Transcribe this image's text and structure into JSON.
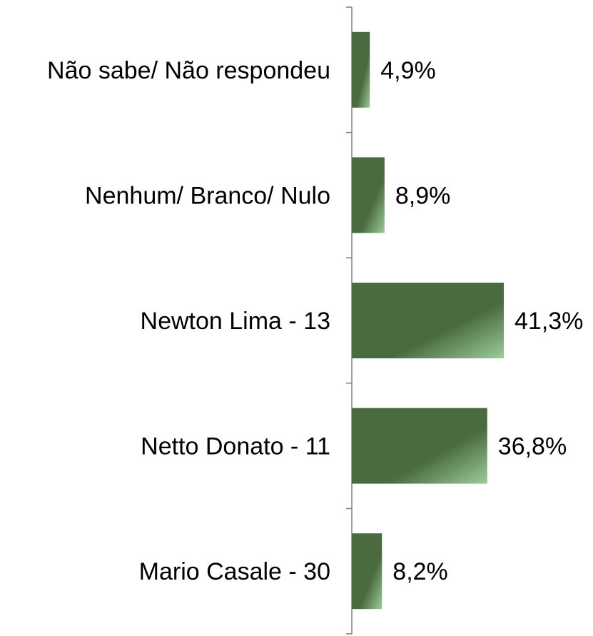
{
  "chart_data": {
    "type": "bar",
    "orientation": "horizontal",
    "title": "",
    "xlabel": "",
    "ylabel": "",
    "categories": [
      "Não sabe/ Não respondeu",
      "Nenhum/ Branco/ Nulo",
      "Newton Lima - 13",
      "Netto Donato - 11",
      "Mario Casale - 30"
    ],
    "values": [
      4.9,
      8.9,
      41.3,
      36.8,
      8.2
    ],
    "value_labels": [
      "4,9%",
      "8,9%",
      "41,3%",
      "36,8%",
      "8,2%"
    ],
    "value_unit": "%",
    "xlim": [
      0,
      60
    ],
    "grid": false,
    "legend": "none",
    "colors": {
      "bar_dark": "#4a6a40",
      "bar_light": "#9ccc98",
      "axis": "#808080",
      "text": "#000000"
    }
  }
}
